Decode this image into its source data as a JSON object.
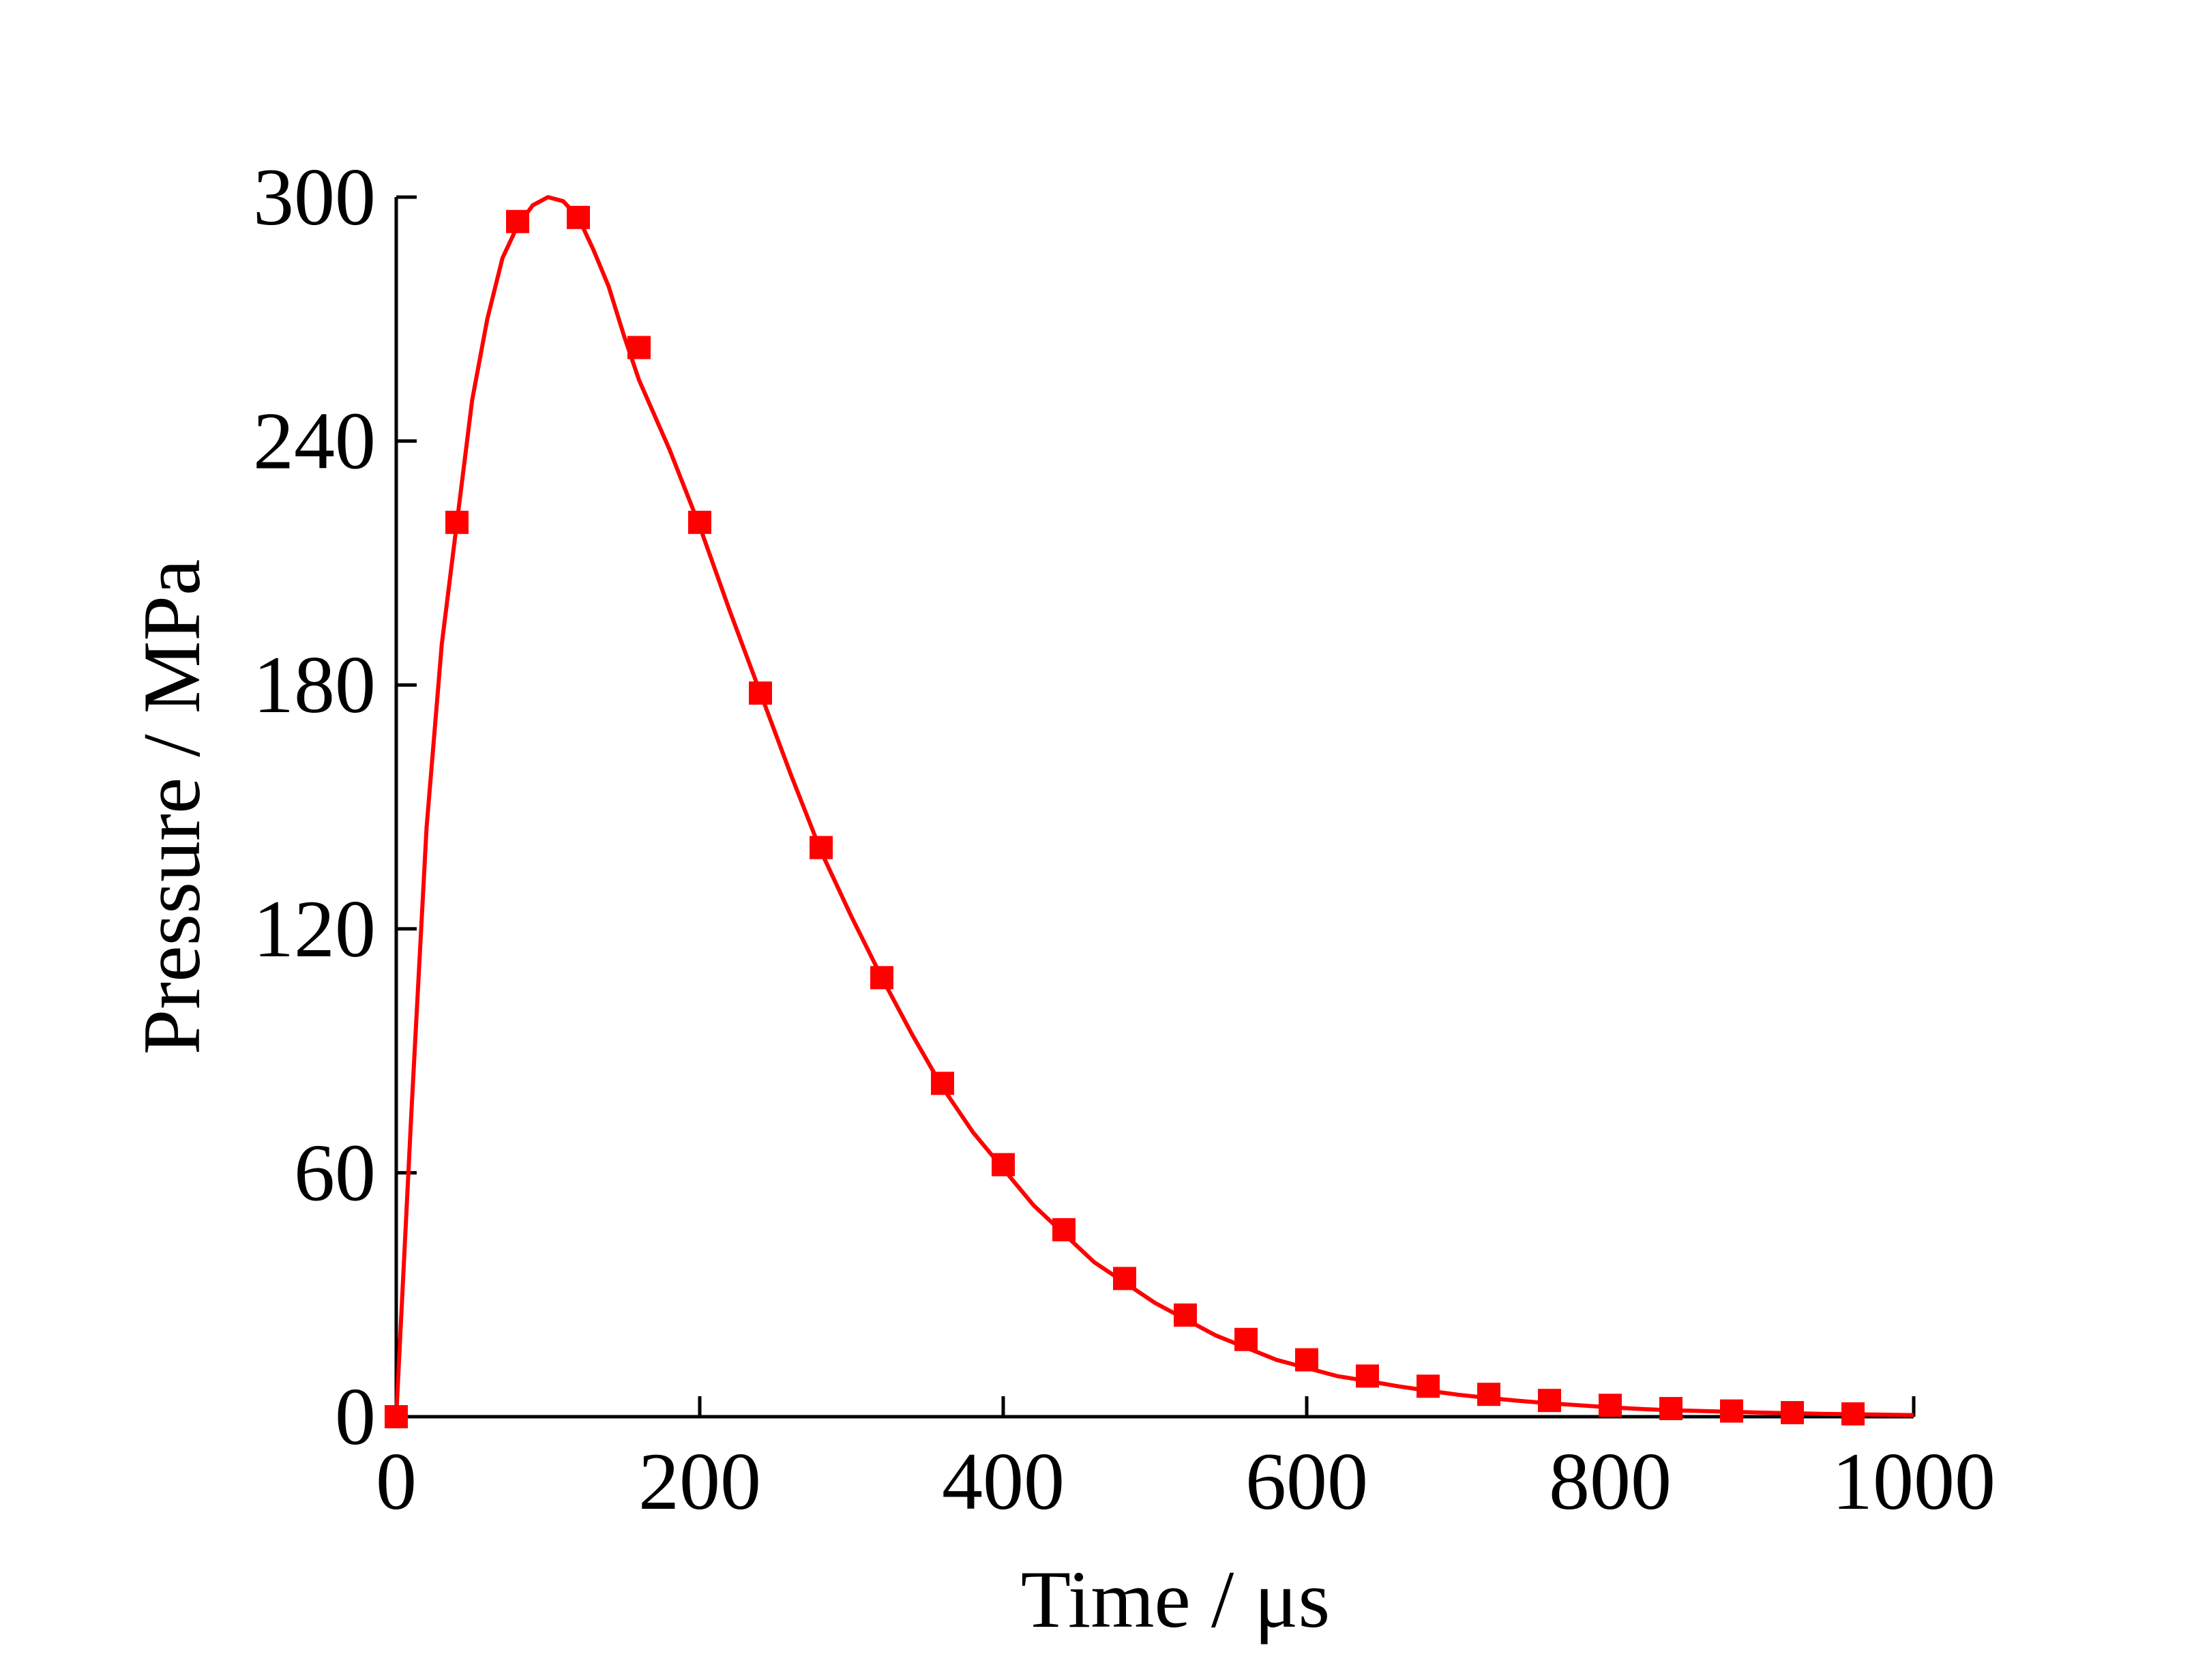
{
  "chart_data": {
    "type": "line",
    "title": "",
    "xlabel": "Time / μs",
    "ylabel": "Pressure / MPa",
    "xlim": [
      0,
      1000
    ],
    "ylim": [
      0,
      300
    ],
    "x_ticks": [
      0,
      200,
      400,
      600,
      800,
      1000
    ],
    "y_ticks": [
      0,
      60,
      120,
      180,
      240,
      300
    ],
    "x_tick_labels": [
      "0",
      "200",
      "400",
      "600",
      "800",
      "1000"
    ],
    "y_tick_labels": [
      "0",
      "60",
      "120",
      "180",
      "240",
      "300"
    ],
    "grid": false,
    "legend": "none",
    "series": [
      {
        "color": "#ff0000",
        "marker": "square",
        "curve": {
          "x": [
            0,
            10,
            20,
            30,
            40,
            50,
            60,
            70,
            80,
            90,
            100,
            110,
            120,
            130,
            140,
            150,
            160,
            180,
            200,
            220,
            240,
            260,
            280,
            300,
            320,
            340,
            360,
            380,
            400,
            420,
            440,
            460,
            480,
            500,
            520,
            540,
            560,
            580,
            600,
            620,
            640,
            660,
            680,
            700,
            720,
            740,
            760,
            780,
            800,
            820,
            840,
            860,
            880,
            900,
            920,
            940,
            960,
            980,
            1000
          ],
          "y": [
            0,
            75,
            145,
            190,
            220,
            250,
            270,
            285,
            293,
            298,
            300,
            299,
            295,
            287,
            278,
            266,
            255,
            238,
            219,
            198,
            178,
            158,
            139,
            123,
            108,
            94,
            81,
            70,
            61,
            52,
            45,
            38,
            33,
            28,
            24,
            20,
            17,
            14,
            12,
            10,
            8.8,
            7.5,
            6.4,
            5.4,
            4.6,
            3.9,
            3.3,
            2.8,
            2.3,
            1.9,
            1.6,
            1.4,
            1.2,
            1.0,
            0.85,
            0.7,
            0.6,
            0.5,
            0.4
          ]
        },
        "markers": {
          "x": [
            0,
            40,
            80,
            120,
            160,
            200,
            240,
            280,
            320,
            360,
            400,
            440,
            480,
            520,
            560,
            600,
            640,
            680,
            720,
            760,
            800,
            840,
            880,
            920,
            960
          ],
          "y": [
            0,
            220,
            294,
            295,
            263,
            220,
            178,
            140,
            108,
            82,
            62,
            46,
            34,
            25,
            19,
            14,
            10,
            7.5,
            5.5,
            4,
            2.8,
            2,
            1.4,
            1,
            0.7
          ]
        }
      }
    ]
  }
}
